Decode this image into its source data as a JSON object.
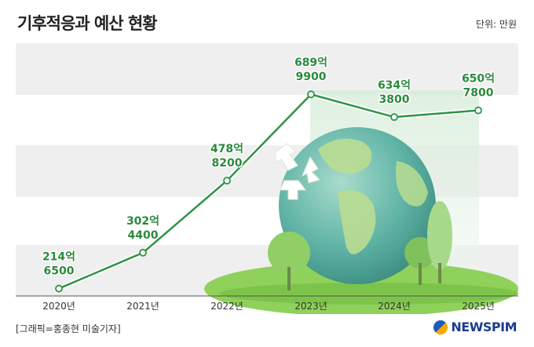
{
  "title": "기후적응과 예산 현황",
  "unit_label": "단위: 만원",
  "credit": "[그래픽=홍종현 미술기자]",
  "brand": "NEWSPIM",
  "colors": {
    "line": "#2e9344",
    "label": "#2a8a3c",
    "band": "#efefef",
    "axis": "#555555"
  },
  "chart_data": {
    "type": "line",
    "categories": [
      "2020년",
      "2021년",
      "2022년",
      "2023년",
      "2024년",
      "2025년"
    ],
    "values": [
      2146500,
      3024400,
      4788200,
      6899900,
      6343800,
      6507800
    ],
    "value_labels": [
      {
        "line1": "214억",
        "line2": "6500"
      },
      {
        "line1": "302억",
        "line2": "4400"
      },
      {
        "line1": "478억",
        "line2": "8200"
      },
      {
        "line1": "689억",
        "line2": "9900"
      },
      {
        "line1": "634억",
        "line2": "3800"
      },
      {
        "line1": "650억",
        "line2": "7800"
      }
    ],
    "ylim": [
      2100000,
      7000000
    ]
  }
}
